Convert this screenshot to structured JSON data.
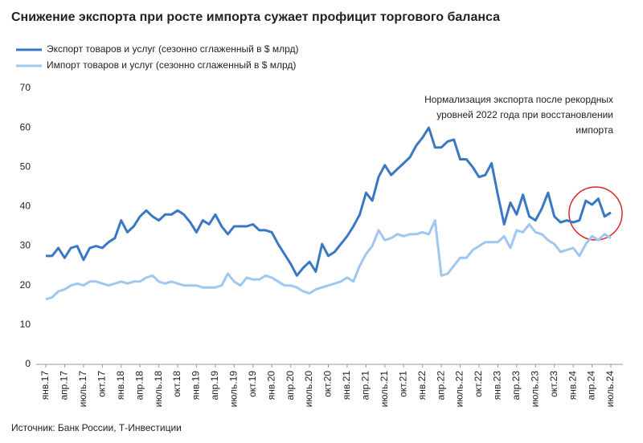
{
  "chart_data": {
    "type": "line",
    "title": "Снижение экспорта при росте импорта сужает профицит торгового баланса",
    "annotation": [
      "Нормализация экспорта после рекордных",
      "уровней 2022 года при восстановлении",
      "импорта"
    ],
    "source": "Источник: Банк России, Т-Инвестиции",
    "categories": [
      "янв.17",
      null,
      null,
      "апр.17",
      null,
      null,
      "июль.17",
      null,
      null,
      "окт.17",
      null,
      null,
      "янв.18",
      null,
      null,
      "апр.18",
      null,
      null,
      "июль.18",
      null,
      null,
      "окт.18",
      null,
      null,
      "янв.19",
      null,
      null,
      "апр.19",
      null,
      null,
      "июль.19",
      null,
      null,
      "окт.19",
      null,
      null,
      "янв.20",
      null,
      null,
      "апр.20",
      null,
      null,
      "июль.20",
      null,
      null,
      "окт.20",
      null,
      null,
      "янв.21",
      null,
      null,
      "апр.21",
      null,
      null,
      "июль.21",
      null,
      null,
      "окт.21",
      null,
      null,
      "янв.22",
      null,
      null,
      "апр.22",
      null,
      null,
      "июль.22",
      null,
      null,
      "окт.22",
      null,
      null,
      "янв.23",
      null,
      null,
      "апр.23",
      null,
      null,
      "июль.23",
      null,
      null,
      "окт.23",
      null,
      null,
      "янв.24",
      null,
      null,
      "апр.24",
      null,
      null,
      "июль.24"
    ],
    "series": [
      {
        "name": "Экспорт товаров и услуг (сезонно сглаженный в $ млрд)",
        "color": "#3a78c4",
        "values": [
          27.5,
          27.5,
          29.5,
          27,
          29.5,
          30,
          26.5,
          29.5,
          30,
          29.5,
          31,
          32,
          36.5,
          33.5,
          35,
          37.5,
          39,
          37.5,
          36.5,
          38,
          38,
          39,
          38,
          36,
          33.5,
          36.5,
          35.5,
          38,
          35,
          33,
          35,
          35,
          35,
          35.5,
          34,
          34,
          33.5,
          30.5,
          28,
          25.5,
          22.5,
          24.5,
          26,
          23.5,
          30.5,
          27.5,
          28.5,
          30.5,
          32.5,
          35,
          38,
          43.5,
          41.5,
          47.5,
          50.5,
          48,
          49.5,
          51,
          52.5,
          55.5,
          57.5,
          60,
          55,
          55,
          56.5,
          57,
          52,
          52,
          50,
          47.5,
          48,
          51,
          43,
          35.5,
          41,
          38,
          43,
          37.5,
          36.5,
          39.5,
          43.5,
          37.5,
          36,
          36.5,
          36,
          36.5,
          41.5,
          40.5,
          42,
          37.5,
          38.5
        ]
      },
      {
        "name": "Импорт товаров и услуг (сезонно сглаженный в $ млрд)",
        "color": "#9fc7ef",
        "values": [
          16.5,
          17,
          18.5,
          19,
          20,
          20.5,
          20,
          21,
          21,
          20.5,
          20,
          20.5,
          21,
          20.5,
          21,
          21,
          22,
          22.5,
          21,
          20.5,
          21,
          20.5,
          20,
          20,
          20,
          19.5,
          19.5,
          19.5,
          20,
          23,
          21,
          20,
          22,
          21.5,
          21.5,
          22.5,
          22,
          21,
          20,
          20,
          19.5,
          18.5,
          18,
          19,
          19.5,
          20,
          20.5,
          21,
          22,
          21,
          25,
          28,
          30,
          34,
          31.5,
          32,
          33,
          32.5,
          33,
          33,
          33.5,
          33,
          36.5,
          22.5,
          23,
          25,
          27,
          27,
          29,
          30,
          31,
          31,
          31,
          32.5,
          29.5,
          34,
          33.5,
          35.5,
          33.5,
          33,
          31.5,
          30.5,
          28.5,
          29,
          29.5,
          27.5,
          30.5,
          32.5,
          31.5,
          33,
          32
        ]
      }
    ],
    "ylim": [
      0,
      70
    ],
    "yticks": [
      0,
      10,
      20,
      30,
      40,
      50,
      60,
      70
    ],
    "grid": false
  }
}
